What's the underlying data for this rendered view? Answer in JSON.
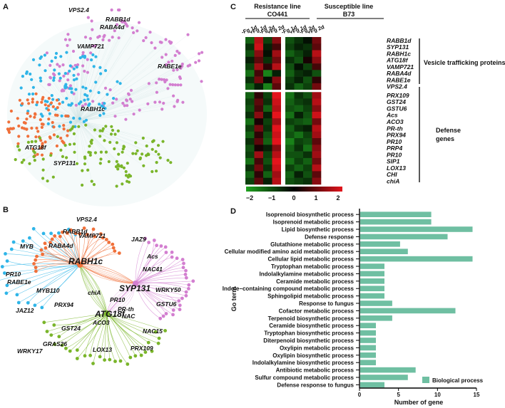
{
  "panels": {
    "a": "A",
    "b": "B",
    "c": "C",
    "d": "D"
  },
  "colors": {
    "pink": "#d37fd0",
    "blue": "#2fb5e8",
    "orange": "#f0703a",
    "green": "#7ab52a",
    "bar": "#6fbfa2"
  },
  "network_a": {
    "labels": [
      "VPS2.4",
      "RABB1d",
      "RABA4d",
      "VAMP721",
      "RABE1e",
      "RABH1c",
      "ATG18f",
      "SYP131"
    ]
  },
  "network_b": {
    "hubs": [
      "RABH1c",
      "SYP131",
      "ATG18f"
    ],
    "labels": [
      "VPS2.4",
      "RABB1d",
      "VAMP721",
      "JAZ9",
      "RABA4d",
      "MYB",
      "Acs",
      "NAC41",
      "PR10",
      "RABE1e",
      "WRKY50",
      "MYB110",
      "chiA",
      "PR10",
      "GSTU6",
      "PRX94",
      "PR-th",
      "NAC",
      "JAZ12",
      "ACO3",
      "NAC15",
      "GST24",
      "WRKY17",
      "GRAS26",
      "LOX13",
      "PRX109"
    ]
  },
  "heatmap": {
    "group1": {
      "line1": "Resistance line",
      "line2": "CO441"
    },
    "group2": {
      "line1": "Susceptible line",
      "line2": "B73"
    },
    "columns": [
      "-Fg 1d",
      "+Fg 1d",
      "-Fg 2d",
      "+Fg 2d",
      "-Fg 1d",
      "+Fg 1d",
      "-Fg 2d",
      "+Fg 2d"
    ],
    "rows_vesicle": [
      "RABB1d",
      "SYP131",
      "RABH1c",
      "ATG18f",
      "VAMP721",
      "RABA4d",
      "RABE1e",
      "VPS2.4"
    ],
    "rows_defense": [
      "PRX109",
      "GST24",
      "GSTU6",
      "Acs",
      "ACO3",
      "PR-th",
      "PRX94",
      "PR10",
      "PRP4",
      "PR10",
      "SIP1",
      "LOX13",
      "CHI",
      "chiA"
    ],
    "category_vesicle": "Vesicle trafficking proteins",
    "category_defense": [
      "Defense",
      "genes"
    ],
    "values": [
      [
        -1.2,
        1.6,
        -0.8,
        1.2,
        -1.0,
        -0.6,
        -0.2,
        1.0
      ],
      [
        -0.6,
        1.8,
        -0.4,
        0.6,
        -0.8,
        -0.4,
        -0.6,
        0.8
      ],
      [
        -1.0,
        1.2,
        -0.2,
        1.4,
        -1.2,
        -0.8,
        -0.4,
        1.6
      ],
      [
        -0.4,
        0.8,
        -0.6,
        1.0,
        -0.6,
        -1.0,
        0.2,
        1.2
      ],
      [
        -0.8,
        1.4,
        0.4,
        1.6,
        -1.0,
        -0.2,
        -0.8,
        0.6
      ],
      [
        -1.4,
        0.6,
        -1.6,
        -0.4,
        -1.2,
        -0.6,
        -0.4,
        -1.0
      ],
      [
        -0.6,
        1.0,
        -0.2,
        1.2,
        -0.8,
        -0.4,
        -1.0,
        0.4
      ],
      [
        -1.2,
        -0.4,
        -1.6,
        0.8,
        -0.6,
        -1.2,
        -0.8,
        1.0
      ],
      [
        -1.2,
        0.4,
        -0.8,
        2.0,
        -1.4,
        -0.6,
        -1.0,
        1.4
      ],
      [
        -0.8,
        0.8,
        -0.6,
        1.8,
        -1.2,
        -0.8,
        -0.6,
        1.6
      ],
      [
        -1.0,
        0.6,
        -1.2,
        1.6,
        -1.0,
        -1.2,
        -0.8,
        1.2
      ],
      [
        -0.6,
        1.2,
        -0.4,
        2.0,
        -1.4,
        -0.4,
        -1.0,
        1.8
      ],
      [
        -1.4,
        0.2,
        -0.8,
        1.4,
        -0.8,
        -1.0,
        -1.2,
        1.0
      ],
      [
        -0.8,
        1.0,
        -0.6,
        2.0,
        -1.2,
        -0.6,
        -0.4,
        1.6
      ],
      [
        -1.2,
        0.4,
        -1.0,
        1.8,
        -1.0,
        -1.4,
        -0.8,
        1.4
      ],
      [
        -0.6,
        0.8,
        -1.2,
        2.0,
        -1.6,
        -0.8,
        -1.0,
        0.8
      ],
      [
        -1.0,
        0.2,
        -0.4,
        1.2,
        -1.2,
        -0.6,
        -1.4,
        1.2
      ],
      [
        -0.8,
        1.4,
        -0.8,
        1.6,
        -1.0,
        -1.0,
        -0.6,
        1.4
      ],
      [
        -1.4,
        0.6,
        -1.0,
        2.0,
        -1.4,
        -0.8,
        -1.2,
        1.0
      ],
      [
        -0.6,
        1.0,
        -0.6,
        1.8,
        -0.8,
        -1.2,
        -0.8,
        1.6
      ],
      [
        -1.2,
        0.4,
        -1.2,
        1.4,
        -1.2,
        -0.4,
        -1.0,
        0.8
      ],
      [
        -0.8,
        0.8,
        -0.4,
        1.6,
        -1.0,
        -0.8,
        -0.6,
        1.2
      ]
    ],
    "colorbar": {
      "ticks": [
        "−2",
        "−1",
        "0",
        "1",
        "2"
      ],
      "min": -2,
      "max": 2,
      "low": "#1fa21f",
      "mid": "#000000",
      "high": "#e3141c"
    }
  },
  "chart_data": {
    "type": "bar",
    "orientation": "horizontal",
    "categories": [
      "Isoprenoid biosynthetic process",
      "Isoprenoid metabolic process",
      "Lipid biosynthetic process",
      "Defense response",
      "Glutathione metabolic process",
      "Cellular modified amino acid metabolic process",
      "Cellular lipid metabolic process",
      "Tryptophan metabolic process",
      "Indolalkylamine metabolic process",
      "Ceramide metabolic process",
      "Indole−containing compound metabolic process",
      "Sphingolipid metabolic process",
      "Response to fungus",
      "Cofactor metabolic process",
      "Terpenoid biosynthetic process",
      "Ceramide biosynthetic process",
      "Tryptophan biosynthetic process",
      "Diterpenoid biosynthetic process",
      "Oxylipin metabolic process",
      "Oxylipin biosynthetic process",
      "Indolalkylamine biosynthetic process",
      "Antibiotic metabolic process",
      "Sulfur compound metabolic process",
      "Defense response to fungus"
    ],
    "values": [
      9.2,
      9.2,
      14.5,
      11.3,
      5.2,
      6.2,
      14.5,
      3.2,
      3.2,
      3.2,
      3.2,
      3.2,
      4.2,
      12.3,
      4.2,
      2.1,
      2.1,
      2.1,
      2.1,
      2.1,
      2.1,
      7.2,
      6.2,
      3.2
    ],
    "xlabel": "Number of gene",
    "ylabel": "Go term",
    "xlim": [
      0,
      15
    ],
    "xticks": [
      "0",
      "5",
      "10",
      "15"
    ],
    "legend": "Biological process"
  }
}
